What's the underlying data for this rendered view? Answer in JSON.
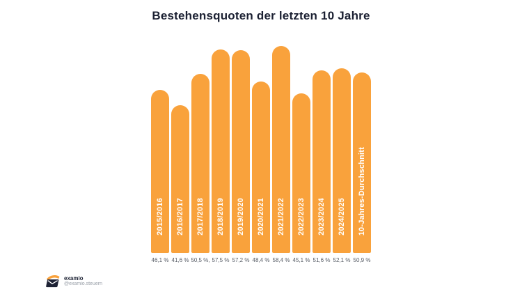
{
  "chart_data": {
    "type": "bar",
    "title": "Bestehensquoten der letzten 10 Jahre",
    "categories": [
      "2015/2016",
      "2016/2017",
      "2017/2018",
      "2018/2019",
      "2019/2020",
      "2020/2021",
      "2021/2022",
      "2022/2023",
      "2023/2024",
      "2024/2025",
      "10-Jahres-Durchschnitt"
    ],
    "values": [
      46.1,
      41.6,
      50.5,
      57.5,
      57.2,
      48.4,
      58.4,
      45.1,
      51.6,
      52.1,
      50.9
    ],
    "value_labels": [
      "46,1 %",
      "41,6 %",
      "50,5 %,",
      "57,5 %",
      "57,2 %",
      "48,4 %",
      "58,4 %",
      "45,1 %",
      "51,6 %",
      "52,1 %",
      "50,9 %"
    ],
    "xlabel": "",
    "ylabel": "",
    "ylim": [
      0,
      58.4
    ],
    "grid": false,
    "legend": false,
    "bar_color": "#F9A23C",
    "label_color": "#ffffff",
    "value_color": "#565B64",
    "title_color": "#1B2032"
  },
  "branding": {
    "name": "examio",
    "handle": "@examio.steuern",
    "logo_icon": "envelope-logo",
    "logo_dark": "#1E2235",
    "logo_orange": "#F9A23C"
  }
}
